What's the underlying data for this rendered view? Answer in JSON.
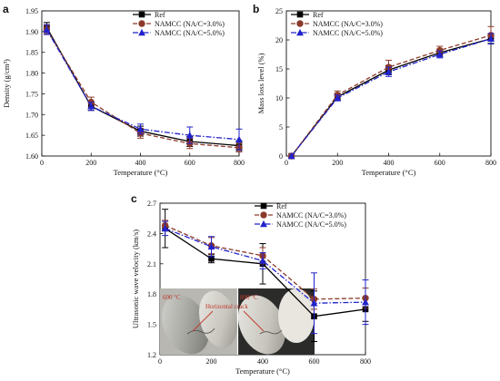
{
  "chart_data": [
    {
      "panel": "a",
      "type": "line",
      "xlabel": "Temperature (°C)",
      "ylabel": "Density (g/cm³)",
      "x": [
        20,
        200,
        400,
        600,
        800
      ],
      "xlim": [
        0,
        800
      ],
      "ylim": [
        1.6,
        1.95
      ],
      "xticks": [
        "0",
        "200",
        "400",
        "600",
        "800"
      ],
      "yticks": [
        "1.60",
        "1.65",
        "1.70",
        "1.75",
        "1.80",
        "1.85",
        "1.90",
        "1.95"
      ],
      "legend_position": "top-right",
      "series": [
        {
          "name": "Ref",
          "color": "#000000",
          "marker": "square",
          "dash": "solid",
          "values": [
            1.91,
            1.72,
            1.66,
            1.635,
            1.625
          ],
          "errors": [
            0.012,
            0.01,
            0.012,
            0.012,
            0.012
          ]
        },
        {
          "name": "NAMCC (NA/C=3.0%)",
          "color": "#8b3a2a",
          "marker": "circle",
          "dash": "dashed",
          "values": [
            1.905,
            1.73,
            1.655,
            1.63,
            1.62
          ],
          "errors": [
            0.01,
            0.012,
            0.012,
            0.012,
            0.01
          ]
        },
        {
          "name": "NAMCC (NA/C=5.0%)",
          "color": "#2222cc",
          "marker": "triangle",
          "dash": "dashdot",
          "values": [
            1.905,
            1.72,
            1.665,
            1.65,
            1.64
          ],
          "errors": [
            0.012,
            0.01,
            0.012,
            0.02,
            0.025
          ]
        }
      ]
    },
    {
      "panel": "b",
      "type": "line",
      "xlabel": "Temperature (°C)",
      "ylabel": "Mass loss level (%)",
      "x": [
        20,
        200,
        400,
        600,
        800
      ],
      "xlim": [
        0,
        800
      ],
      "ylim": [
        0,
        25
      ],
      "xticks": [
        "0",
        "200",
        "400",
        "600",
        "800"
      ],
      "yticks": [
        "0",
        "5",
        "10",
        "15",
        "20",
        "25"
      ],
      "legend_position": "top-left",
      "series": [
        {
          "name": "Ref",
          "color": "#000000",
          "marker": "square",
          "dash": "solid",
          "values": [
            0,
            10.2,
            14.8,
            17.8,
            20.2
          ],
          "errors": [
            0,
            0.6,
            0.8,
            0.6,
            0.8
          ]
        },
        {
          "name": "NAMCC (NA/C=3.0%)",
          "color": "#8b3a2a",
          "marker": "circle",
          "dash": "dashed",
          "values": [
            0,
            10.5,
            15.3,
            18.2,
            20.8
          ],
          "errors": [
            0,
            0.7,
            1.2,
            0.7,
            1.5
          ]
        },
        {
          "name": "NAMCC (NA/C=5.0%)",
          "color": "#2222cc",
          "marker": "triangle",
          "dash": "dashdot",
          "values": [
            0,
            10.0,
            14.5,
            17.5,
            20.2
          ],
          "errors": [
            0,
            0.5,
            0.8,
            0.6,
            0.9
          ]
        }
      ]
    },
    {
      "panel": "c",
      "type": "line",
      "xlabel": "Temperature (°C)",
      "ylabel": "Ultrasonic wave velocity (km/s)",
      "x": [
        20,
        200,
        400,
        600,
        800
      ],
      "xlim": [
        0,
        800
      ],
      "ylim": [
        1.2,
        2.7
      ],
      "xticks": [
        "0",
        "200",
        "400",
        "600",
        "800"
      ],
      "yticks": [
        "1.2",
        "1.5",
        "1.8",
        "2.1",
        "2.4",
        "2.7"
      ],
      "legend_position": "top-right",
      "series": [
        {
          "name": "Ref",
          "color": "#000000",
          "marker": "square",
          "dash": "solid",
          "values": [
            2.45,
            2.15,
            2.1,
            1.58,
            1.65
          ],
          "errors": [
            0.19,
            0.04,
            0.2,
            0.25,
            0.12
          ]
        },
        {
          "name": "NAMCC (NA/C=3.0%)",
          "color": "#8b3a2a",
          "marker": "circle",
          "dash": "dashed",
          "values": [
            2.48,
            2.28,
            2.18,
            1.75,
            1.76
          ],
          "errors": [
            0.05,
            0.08,
            0.08,
            0.1,
            0.1
          ]
        },
        {
          "name": "NAMCC (NA/C=5.0%)",
          "color": "#2222cc",
          "marker": "triangle",
          "dash": "dashdot",
          "values": [
            2.45,
            2.27,
            2.13,
            1.71,
            1.72
          ],
          "errors": [
            0.07,
            0.1,
            0.08,
            0.3,
            0.22
          ]
        }
      ],
      "inset_photo": {
        "labels": [
          "600 °C",
          "800 °C",
          "Horizontal crack"
        ]
      }
    }
  ]
}
